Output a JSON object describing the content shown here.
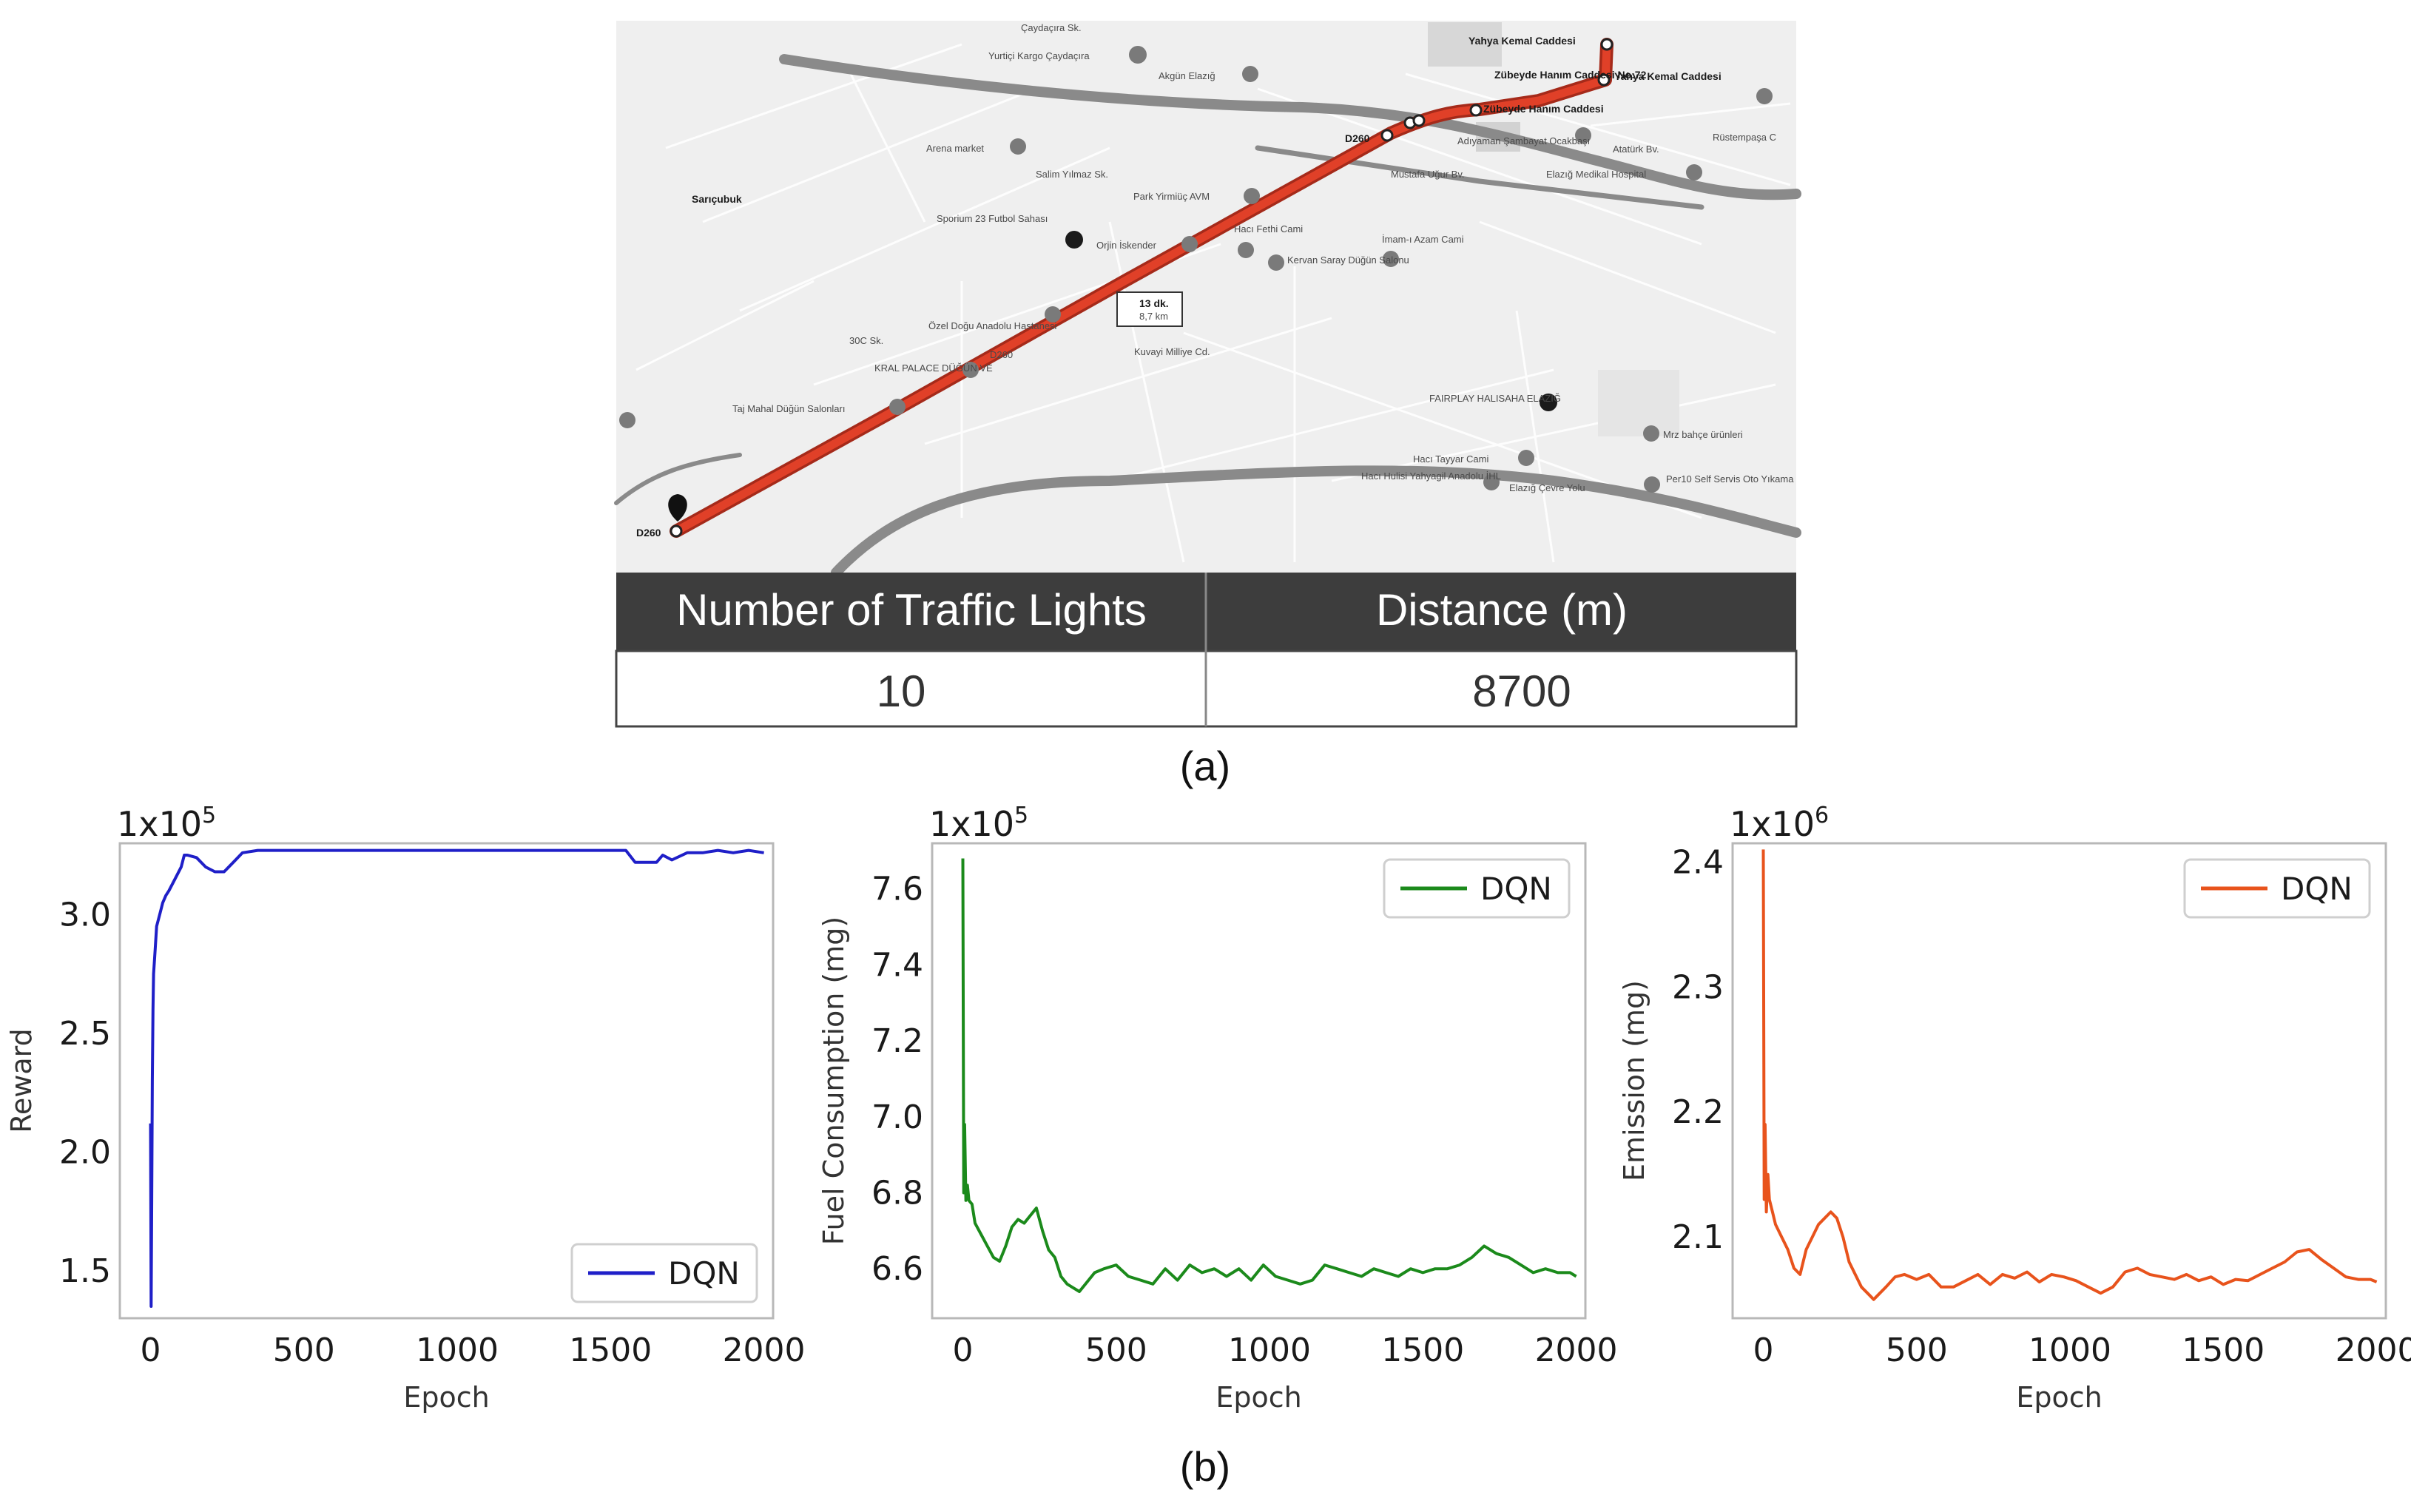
{
  "map": {
    "route_time": "13 dk.",
    "route_dist": "8,7 km",
    "road_labels": [
      "D260",
      "D260",
      "D260"
    ],
    "places": [
      "Yahya Kemal Caddesi",
      "Zübeyde Hanım Caddesi No:72",
      "Yahya Kemal Caddesi",
      "Zübeyde Hanım Caddesi",
      "Yurtiçi Kargo Çaydaçıra",
      "Akgün Elazığ",
      "Arena market",
      "Adıyaman Şambayat Ocakbaşı",
      "Elazığ Medikal Hospital",
      "Rüstempaşa C",
      "Sarıçubuk",
      "Park Yirmiüç AVM",
      "Sporium 23 Futbol Sahası",
      "Orjin İskender",
      "Hacı Fethi Cami",
      "İmam-ı Azam Cami",
      "Kervan Saray Düğün Salonu",
      "Özel Doğu Anadolu Hastanesi",
      "Kuvayi Milliye Cd.",
      "KRAL PALACE DÜĞÜN VE",
      "Taj Mahal Düğün Salonları",
      "FAIRPLAY HALISAHA ELAZIĞ",
      "Mrz bahçe ürünleri",
      "Hacı Tayyar Cami",
      "Hacı Hulisi Yahyagil Anadolu İHL",
      "Per10 Self Servis Oto Yıkama",
      "Elazığ Çevre Yolu",
      "Mustafa Uğur Bv.",
      "Atatürk Bv.",
      "Çaydaçıra Sk.",
      "Salim Yılmaz Sk.",
      "30C Sk."
    ]
  },
  "table": {
    "headers": [
      "Number of Traffic Lights",
      "Distance (m)"
    ],
    "values": [
      "10",
      "8700"
    ]
  },
  "captions": {
    "a": "(a)",
    "b": "(b)"
  },
  "colors": {
    "blue": "#1f1fc8",
    "green": "#1b8a1b",
    "orange": "#e8531c",
    "route": "#d93a22",
    "table_header": "#3d3d3d"
  },
  "chart_data": [
    {
      "type": "line",
      "ylabel": "Reward",
      "xlabel": "Epoch",
      "multiplier": "1x10",
      "multiplier_exp": "5",
      "xlim": [
        -100,
        2030
      ],
      "ylim": [
        1.3,
        3.3
      ],
      "xticks": [
        "0",
        "500",
        "1000",
        "1500",
        "2000"
      ],
      "yticks": [
        "1.5",
        "2.0",
        "2.5",
        "3.0"
      ],
      "legend": "lower right",
      "series": [
        {
          "name": "DQN",
          "color": "#1f1fc8",
          "x": [
            0,
            2,
            4,
            6,
            8,
            10,
            15,
            20,
            30,
            40,
            50,
            60,
            80,
            100,
            110,
            120,
            150,
            180,
            210,
            240,
            270,
            300,
            350,
            400,
            500,
            600,
            800,
            1000,
            1200,
            1400,
            1550,
            1580,
            1600,
            1650,
            1670,
            1700,
            1750,
            1800,
            1850,
            1900,
            1950,
            2000
          ],
          "y": [
            2.12,
            1.35,
            1.8,
            2.3,
            2.6,
            2.75,
            2.85,
            2.95,
            3.0,
            3.05,
            3.08,
            3.1,
            3.15,
            3.2,
            3.25,
            3.25,
            3.24,
            3.2,
            3.18,
            3.18,
            3.22,
            3.26,
            3.27,
            3.27,
            3.27,
            3.27,
            3.27,
            3.27,
            3.27,
            3.27,
            3.27,
            3.22,
            3.22,
            3.22,
            3.25,
            3.23,
            3.26,
            3.26,
            3.27,
            3.26,
            3.27,
            3.26
          ]
        }
      ]
    },
    {
      "type": "line",
      "ylabel": "Fuel Consumption (mg)",
      "xlabel": "Epoch",
      "multiplier": "1x10",
      "multiplier_exp": "5",
      "xlim": [
        -100,
        2030
      ],
      "ylim": [
        6.47,
        7.72
      ],
      "xticks": [
        "0",
        "500",
        "1000",
        "1500",
        "2000"
      ],
      "yticks": [
        "6.6",
        "6.8",
        "7.0",
        "7.2",
        "7.4",
        "7.6"
      ],
      "legend": "upper right",
      "series": [
        {
          "name": "DQN",
          "color": "#1b8a1b",
          "x": [
            0,
            3,
            6,
            10,
            15,
            20,
            30,
            40,
            60,
            80,
            100,
            120,
            140,
            160,
            180,
            200,
            220,
            240,
            260,
            280,
            300,
            320,
            340,
            360,
            380,
            400,
            430,
            460,
            500,
            540,
            580,
            620,
            660,
            700,
            740,
            780,
            820,
            860,
            900,
            940,
            980,
            1020,
            1060,
            1100,
            1140,
            1180,
            1220,
            1260,
            1300,
            1340,
            1380,
            1420,
            1460,
            1500,
            1540,
            1580,
            1620,
            1660,
            1700,
            1740,
            1780,
            1820,
            1860,
            1900,
            1940,
            1980,
            2000
          ],
          "y": [
            7.68,
            6.8,
            6.98,
            6.78,
            6.82,
            6.78,
            6.77,
            6.72,
            6.69,
            6.66,
            6.63,
            6.62,
            6.66,
            6.71,
            6.73,
            6.72,
            6.74,
            6.76,
            6.7,
            6.65,
            6.63,
            6.58,
            6.56,
            6.55,
            6.54,
            6.56,
            6.59,
            6.6,
            6.61,
            6.58,
            6.57,
            6.56,
            6.6,
            6.57,
            6.61,
            6.59,
            6.6,
            6.58,
            6.6,
            6.57,
            6.61,
            6.58,
            6.57,
            6.56,
            6.57,
            6.61,
            6.6,
            6.59,
            6.58,
            6.6,
            6.59,
            6.58,
            6.6,
            6.59,
            6.6,
            6.6,
            6.61,
            6.63,
            6.66,
            6.64,
            6.63,
            6.61,
            6.59,
            6.6,
            6.59,
            6.59,
            6.58
          ]
        }
      ]
    },
    {
      "type": "line",
      "ylabel": "Emission (mg)",
      "xlabel": "Epoch",
      "multiplier": "1x10",
      "multiplier_exp": "6",
      "xlim": [
        -100,
        2030
      ],
      "ylim": [
        2.035,
        2.415
      ],
      "xticks": [
        "0",
        "500",
        "1000",
        "1500",
        "2000"
      ],
      "yticks": [
        "2.1",
        "2.2",
        "2.3",
        "2.4"
      ],
      "legend": "upper right",
      "series": [
        {
          "name": "DQN",
          "color": "#e8531c",
          "x": [
            0,
            3,
            6,
            10,
            15,
            20,
            30,
            40,
            60,
            80,
            100,
            120,
            140,
            160,
            180,
            200,
            220,
            240,
            260,
            280,
            300,
            320,
            340,
            360,
            380,
            400,
            430,
            460,
            500,
            540,
            580,
            620,
            660,
            700,
            740,
            780,
            820,
            860,
            900,
            940,
            980,
            1020,
            1060,
            1100,
            1140,
            1180,
            1220,
            1260,
            1300,
            1340,
            1380,
            1420,
            1460,
            1500,
            1540,
            1580,
            1620,
            1660,
            1700,
            1740,
            1780,
            1820,
            1860,
            1900,
            1940,
            1980,
            2000
          ],
          "y": [
            2.41,
            2.13,
            2.19,
            2.12,
            2.15,
            2.13,
            2.12,
            2.11,
            2.1,
            2.09,
            2.075,
            2.07,
            2.09,
            2.1,
            2.11,
            2.115,
            2.12,
            2.115,
            2.1,
            2.08,
            2.07,
            2.06,
            2.055,
            2.05,
            2.055,
            2.06,
            2.068,
            2.07,
            2.066,
            2.07,
            2.06,
            2.06,
            2.065,
            2.07,
            2.062,
            2.07,
            2.067,
            2.072,
            2.064,
            2.07,
            2.068,
            2.065,
            2.06,
            2.055,
            2.06,
            2.072,
            2.075,
            2.07,
            2.068,
            2.066,
            2.07,
            2.065,
            2.068,
            2.062,
            2.066,
            2.065,
            2.07,
            2.075,
            2.08,
            2.088,
            2.09,
            2.082,
            2.075,
            2.068,
            2.066,
            2.066,
            2.064
          ]
        }
      ]
    }
  ]
}
